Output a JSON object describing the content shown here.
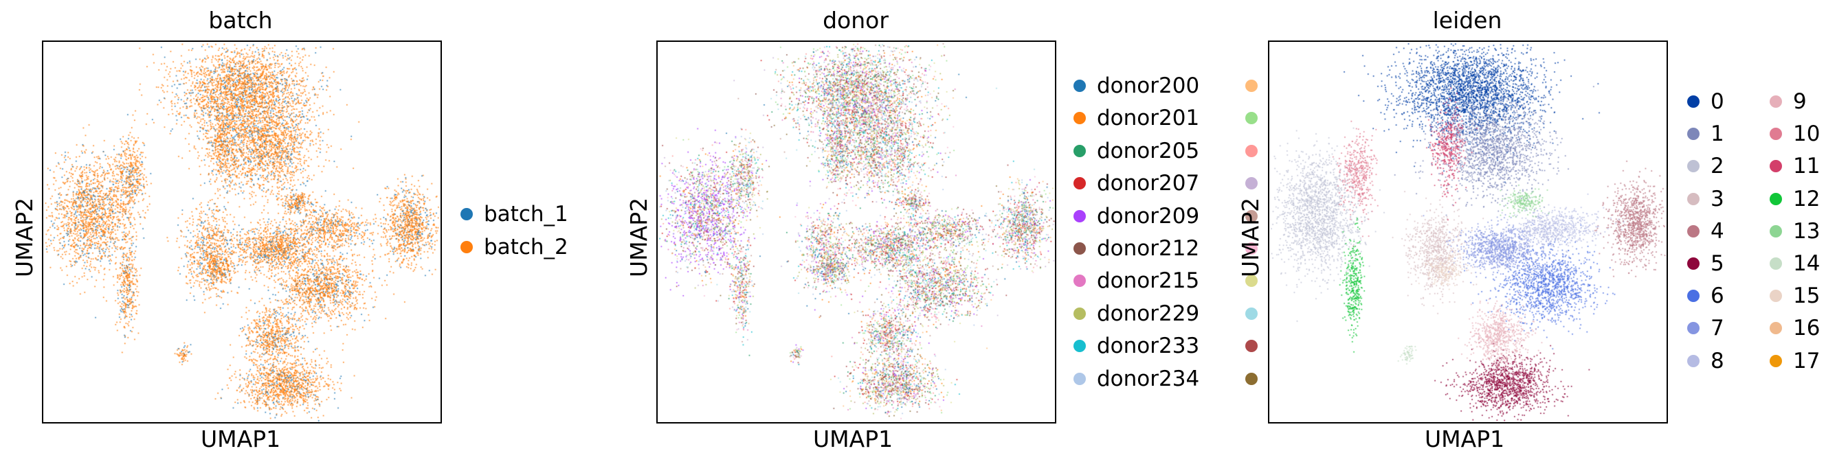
{
  "chart_data": [
    {
      "type": "scatter",
      "title": "batch",
      "xlabel": "UMAP1",
      "ylabel": "UMAP2",
      "legend": [
        {
          "name": "batch_1",
          "color": "#1f77b4"
        },
        {
          "name": "batch_2",
          "color": "#ff7f0e"
        }
      ]
    },
    {
      "type": "scatter",
      "title": "donor",
      "xlabel": "UMAP1",
      "ylabel": "UMAP2",
      "legend": [
        {
          "name": "donor200",
          "color": "#1f77b4"
        },
        {
          "name": "donor201",
          "color": "#ff7f0e"
        },
        {
          "name": "donor205",
          "color": "#279e68"
        },
        {
          "name": "donor207",
          "color": "#d62728"
        },
        {
          "name": "donor209",
          "color": "#aa40fc"
        },
        {
          "name": "donor212",
          "color": "#8c564b"
        },
        {
          "name": "donor215",
          "color": "#e377c2"
        },
        {
          "name": "donor229",
          "color": "#b5bd61"
        },
        {
          "name": "donor233",
          "color": "#17becf"
        },
        {
          "name": "donor234",
          "color": "#aec7e8"
        }
      ],
      "legend_col2_colors": [
        "#ffbb78",
        "#98df8a",
        "#ff9896",
        "#c5b0d5",
        "#c49c94",
        "#f7b6d2",
        "#dbdb8d",
        "#9edae5",
        "#ad494a",
        "#8c6d31"
      ]
    },
    {
      "type": "scatter",
      "title": "leiden",
      "xlabel": "UMAP1",
      "ylabel": "UMAP2",
      "legend": [
        {
          "name": "0",
          "color": "#023fa5"
        },
        {
          "name": "1",
          "color": "#7d87b9"
        },
        {
          "name": "2",
          "color": "#bec1d4"
        },
        {
          "name": "3",
          "color": "#d6bcc0"
        },
        {
          "name": "4",
          "color": "#bb7784"
        },
        {
          "name": "5",
          "color": "#8e063b"
        },
        {
          "name": "6",
          "color": "#4a6fe3"
        },
        {
          "name": "7",
          "color": "#8595e1"
        },
        {
          "name": "8",
          "color": "#b5bbe3"
        },
        {
          "name": "9",
          "color": "#e6afb9"
        },
        {
          "name": "10",
          "color": "#e07b91"
        },
        {
          "name": "11",
          "color": "#d33f6a"
        },
        {
          "name": "12",
          "color": "#11c638"
        },
        {
          "name": "13",
          "color": "#8dd593"
        },
        {
          "name": "14",
          "color": "#c6dec7"
        },
        {
          "name": "15",
          "color": "#ead3c6"
        },
        {
          "name": "16",
          "color": "#f0b98d"
        },
        {
          "name": "17",
          "color": "#ef9708"
        }
      ]
    }
  ]
}
